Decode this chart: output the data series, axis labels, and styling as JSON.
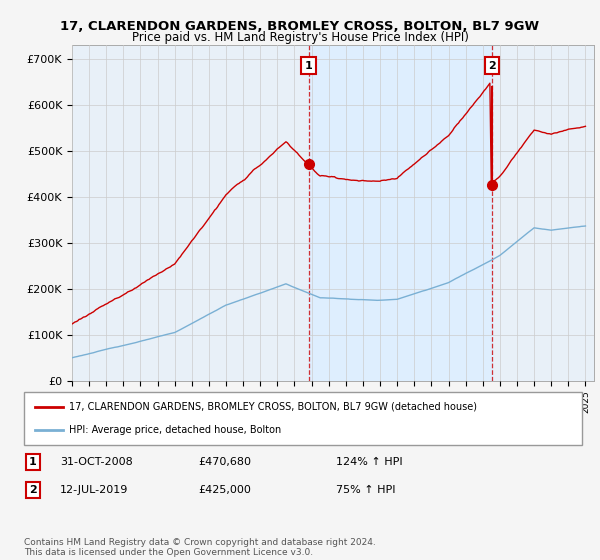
{
  "title": "17, CLARENDON GARDENS, BROMLEY CROSS, BOLTON, BL7 9GW",
  "subtitle": "Price paid vs. HM Land Registry's House Price Index (HPI)",
  "ylabel_ticks": [
    "£0",
    "£100K",
    "£200K",
    "£300K",
    "£400K",
    "£500K",
    "£600K",
    "£700K"
  ],
  "ytick_values": [
    0,
    100000,
    200000,
    300000,
    400000,
    500000,
    600000,
    700000
  ],
  "ylim": [
    0,
    730000
  ],
  "sale1_date_x": 2008.83,
  "sale1_price": 470680,
  "sale2_date_x": 2019.53,
  "sale2_price": 425000,
  "sale1_label": "1",
  "sale2_label": "2",
  "property_color": "#cc0000",
  "hpi_color": "#7ab0d4",
  "shade_color": "#ddeeff",
  "background_color": "#e8f0f8",
  "grid_color": "#cccccc",
  "legend_property": "17, CLARENDON GARDENS, BROMLEY CROSS, BOLTON, BL7 9GW (detached house)",
  "legend_hpi": "HPI: Average price, detached house, Bolton",
  "annotation1_date": "31-OCT-2008",
  "annotation1_price": "£470,680",
  "annotation1_hpi": "124% ↑ HPI",
  "annotation2_date": "12-JUL-2019",
  "annotation2_price": "£425,000",
  "annotation2_hpi": "75% ↑ HPI",
  "footer": "Contains HM Land Registry data © Crown copyright and database right 2024.\nThis data is licensed under the Open Government Licence v3.0.",
  "xmin": 1995,
  "xmax": 2025.5
}
